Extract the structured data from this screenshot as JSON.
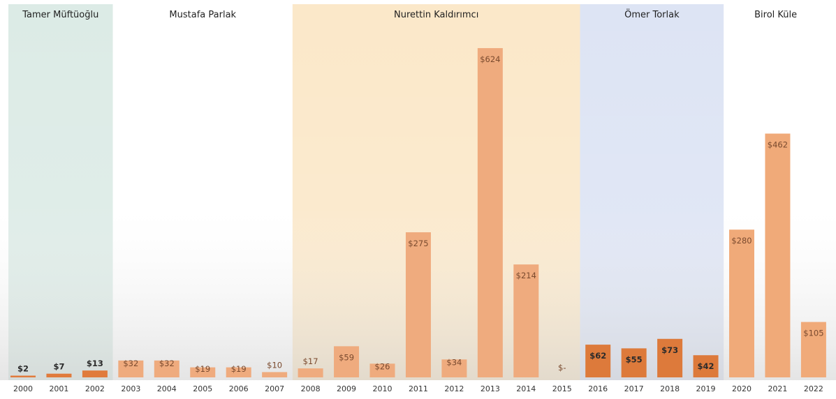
{
  "chart_data": {
    "type": "bar",
    "title": "",
    "xlabel": "",
    "ylabel": "",
    "categories": [
      "2000",
      "2001",
      "2002",
      "2003",
      "2004",
      "2005",
      "2006",
      "2007",
      "2008",
      "2009",
      "2010",
      "2011",
      "2012",
      "2013",
      "2014",
      "2015",
      "2016",
      "2017",
      "2018",
      "2019",
      "2020",
      "2021",
      "2022"
    ],
    "values": [
      2,
      7,
      13,
      32,
      32,
      19,
      19,
      10,
      17,
      59,
      26,
      275,
      34,
      624,
      214,
      0,
      62,
      55,
      73,
      42,
      280,
      462,
      105
    ],
    "value_labels": [
      "$2",
      "$7",
      "$13",
      "$32",
      "$32",
      "$19",
      "$19",
      "$10",
      "$17",
      "$59",
      "$26",
      "$275",
      "$34",
      "$624",
      "$214",
      "$-",
      "$62",
      "$55",
      "$73",
      "$42",
      "$280",
      "$462",
      "$105"
    ],
    "ylim": [
      0,
      660
    ],
    "grid": false,
    "legend": "none",
    "periods": [
      {
        "name": "Tamer Müftüoğlu",
        "start": "2000",
        "end": "2002",
        "band_color": "#dcebe6",
        "bar_color": "#e07b3c"
      },
      {
        "name": "Mustafa Parlak",
        "start": "2003",
        "end": "2007",
        "band_color": "#ffffff",
        "bar_color": "#efab7e"
      },
      {
        "name": "Nurettin Kaldırımcı",
        "start": "2008",
        "end": "2015",
        "band_color": "#fbe8c9",
        "bar_color": "#efab7e"
      },
      {
        "name": "Ömer Torlak",
        "start": "2016",
        "end": "2019",
        "band_color": "#dde4f4",
        "bar_color": "#dd7a3b"
      },
      {
        "name": "Birol Küle",
        "start": "2020",
        "end": "2022",
        "band_color": "#ffffff",
        "bar_color": "#f0aa79"
      }
    ],
    "colors": {
      "label_light": "#7a4a2e",
      "label_dark": "#2b2b2b",
      "axis_tick": "#333333"
    }
  }
}
